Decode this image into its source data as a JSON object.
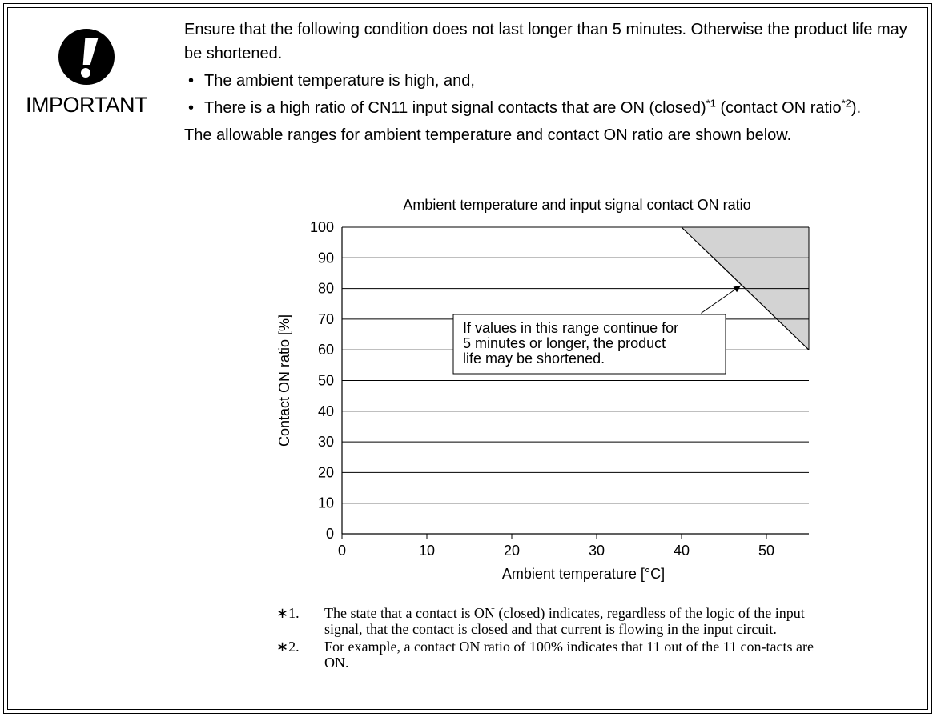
{
  "important": {
    "label": "IMPORTANT",
    "icon": "exclamation-icon"
  },
  "text": {
    "intro": "Ensure that the following condition does not last longer than 5 minutes. Otherwise the product life may be shortened.",
    "bullet1": "The ambient temperature is high, and,",
    "bullet2_a": "There is a high ratio of CN11 input signal contacts that are ON (closed)",
    "bullet2_sup1": "*1",
    "bullet2_b": " (contact ON ratio",
    "bullet2_sup2": "*2",
    "bullet2_c": ").",
    "bullet_char": "•",
    "allowable": "The allowable ranges for ambient temperature and contact ON ratio are shown below."
  },
  "chart_data": {
    "type": "area",
    "title": "Ambient temperature and input signal contact ON ratio",
    "xlabel": "Ambient temperature [°C]",
    "ylabel": "Contact ON ratio [%]",
    "xlim": [
      0,
      55
    ],
    "ylim": [
      0,
      100
    ],
    "xticks": [
      0,
      10,
      20,
      30,
      40,
      50
    ],
    "yticks": [
      0,
      10,
      20,
      30,
      40,
      50,
      60,
      70,
      80,
      90,
      100
    ],
    "grid": "horizontal",
    "region": {
      "name": "",
      "fill": "#d3d3d3",
      "boundary": [
        {
          "x": 40,
          "y": 100
        },
        {
          "x": 55,
          "y": 60
        }
      ],
      "polygon": [
        {
          "x": 40,
          "y": 100
        },
        {
          "x": 55,
          "y": 100
        },
        {
          "x": 55,
          "y": 60
        }
      ]
    },
    "annotation": {
      "lines": [
        "If values in this range continue for",
        "5 minutes or longer, the product",
        "life may be shortened."
      ],
      "points_to": {
        "x": 47,
        "y": 81
      }
    }
  },
  "notes": [
    {
      "mark": "∗1.",
      "text": "The state that a contact is ON (closed) indicates, regardless of the logic of the input signal, that the contact is closed and that current is flowing in the input circuit."
    },
    {
      "mark": "∗2.",
      "text": "For example, a contact ON ratio of 100% indicates that 11 out of the 11 con-tacts are ON."
    }
  ]
}
